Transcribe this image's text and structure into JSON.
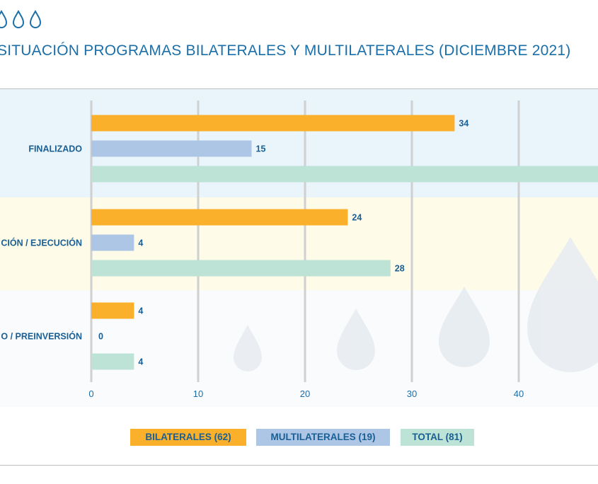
{
  "title": "SITUACIÓN PROGRAMAS BILATERALES Y MULTILATERALES (DICIEMBRE 2021)",
  "icons": {
    "header": [
      "water-drop-icon",
      "water-drop-icon",
      "water-drop-icon"
    ]
  },
  "legend": {
    "bilaterales": "BILATERALES (62)",
    "multilaterales": "MULTILATERALES (19)",
    "total": "TOTAL (81)"
  },
  "colors": {
    "bilaterales": "#fbb02b",
    "multilaterales": "#adc6e6",
    "total": "#bde3d7",
    "text": "#1a5f94"
  },
  "chart_data": {
    "type": "bar",
    "orientation": "horizontal",
    "title": "SITUACIÓN PROGRAMAS BILATERALES Y MULTILATERALES (DICIEMBRE 2021)",
    "categories": [
      "FINALIZADO",
      "FORMULACIÓN / EJECUCIÓN",
      "IDENTIFICACIÓN / PREINVERSIÓN"
    ],
    "category_labels_visible": [
      "FINALIZADO",
      "CIÓN / EJECUCIÓN",
      "O / PREINVERSIÓN"
    ],
    "series": [
      {
        "name": "BILATERALES (62)",
        "values": [
          34,
          24,
          4
        ]
      },
      {
        "name": "MULTILATERALES (19)",
        "values": [
          15,
          4,
          0
        ]
      },
      {
        "name": "TOTAL (81)",
        "values": [
          49,
          28,
          4
        ]
      }
    ],
    "data_labels_visible": [
      [
        "34",
        "15",
        ""
      ],
      [
        "24",
        "4",
        "28"
      ],
      [
        "4",
        "0",
        "4"
      ]
    ],
    "xticks": [
      0,
      10,
      20,
      30,
      40
    ],
    "xlim": [
      0,
      50
    ],
    "grid": true,
    "legend_position": "bottom"
  }
}
